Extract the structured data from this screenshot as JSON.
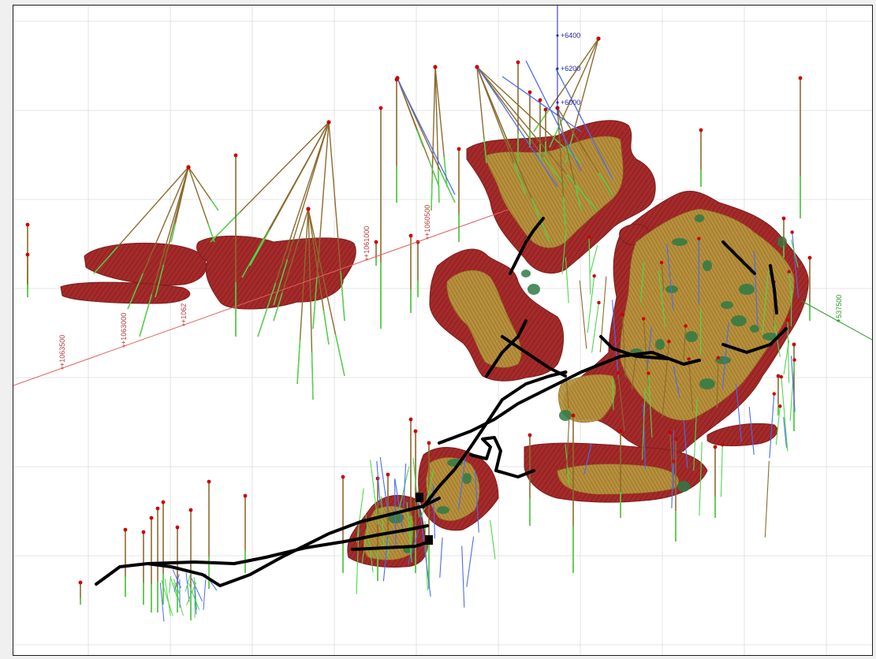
{
  "colors": {
    "background": "#ffffff",
    "grid": "#dcdcdc",
    "ore_red": "#a52a2a",
    "ore_red_dark": "#7f1d1d",
    "ore_tan": "#b8963e",
    "ore_green": "#2f7a45",
    "underground_workings": "#000000",
    "drill_trace_tan": "#8b6b2e",
    "drill_trace_green": "#4cd84c",
    "drill_trace_blue": "#4a6cf0",
    "collar_red": "#cc0000",
    "northing_axis": "#e06060",
    "elevation_axis": "#2323a8",
    "easting_axis": "#2e9a2e"
  },
  "axes": {
    "northing": {
      "color_key": "northing_axis",
      "labels": [
        "+1063500",
        "+1063000",
        "+1062",
        "+1061000",
        "+1060500"
      ]
    },
    "elevation": {
      "color_key": "elevation_axis",
      "labels": [
        "+6400",
        "+6200",
        "+6000"
      ]
    },
    "easting": {
      "color_key": "easting_axis",
      "labels": [
        "+537500"
      ]
    }
  },
  "legend": "none",
  "grid": "on"
}
